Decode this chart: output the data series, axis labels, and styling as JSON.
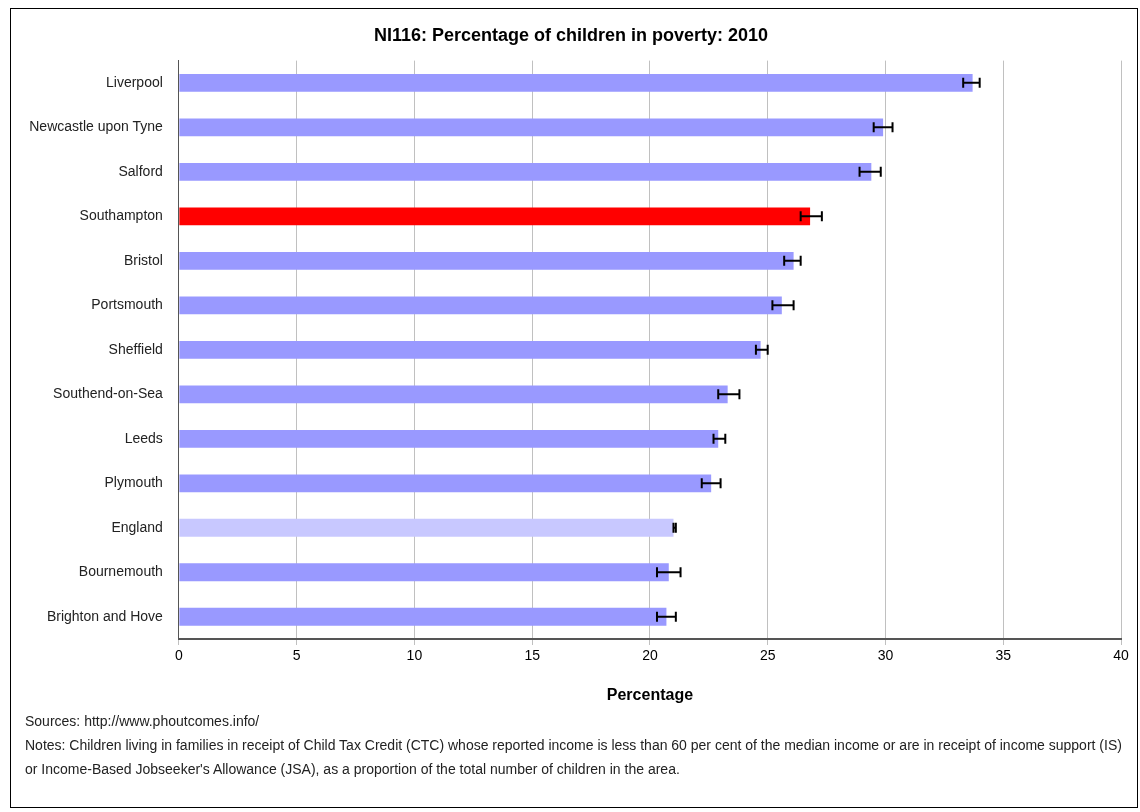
{
  "chart_data": {
    "type": "bar",
    "orientation": "horizontal",
    "title": "NI116: Percentage of children in poverty: 2010",
    "xlabel": "Percentage",
    "categories": [
      "Liverpool",
      "Newcastle upon Tyne",
      "Salford",
      "Southampton",
      "Bristol",
      "Portsmouth",
      "Sheffield",
      "Southend-on-Sea",
      "Leeds",
      "Plymouth",
      "England",
      "Bournemouth",
      "Brighton and Hove"
    ],
    "values": [
      33.7,
      29.9,
      29.4,
      26.8,
      26.1,
      25.6,
      24.7,
      23.3,
      22.9,
      22.6,
      21.0,
      20.8,
      20.7
    ],
    "errors": [
      [
        33.3,
        34.0
      ],
      [
        29.5,
        30.3
      ],
      [
        28.9,
        29.8
      ],
      [
        26.4,
        27.3
      ],
      [
        25.7,
        26.4
      ],
      [
        25.2,
        26.1
      ],
      [
        24.5,
        25.0
      ],
      [
        22.9,
        23.8
      ],
      [
        22.7,
        23.2
      ],
      [
        22.2,
        23.0
      ],
      [
        21.0,
        21.1
      ],
      [
        20.3,
        21.3
      ],
      [
        20.3,
        21.1
      ]
    ],
    "colors": [
      "#9999ff",
      "#9999ff",
      "#9999ff",
      "#ff0000",
      "#9999ff",
      "#9999ff",
      "#9999ff",
      "#9999ff",
      "#9999ff",
      "#9999ff",
      "#c8c8ff",
      "#9999ff",
      "#9999ff"
    ],
    "xlim": [
      0,
      40
    ],
    "xticks": [
      0,
      5,
      10,
      15,
      20,
      25,
      30,
      35,
      40
    ],
    "grid": "x",
    "legend": false,
    "annotations": [
      "Sources: http://www.phoutcomes.info/",
      "Notes: Children living in families in receipt of Child Tax Credit (CTC) whose reported income is less than 60 per cent of the median income or are in receipt of income support (IS) or Income-Based Jobseeker's Allowance (JSA), as a proportion of the total number of children in the area."
    ]
  }
}
